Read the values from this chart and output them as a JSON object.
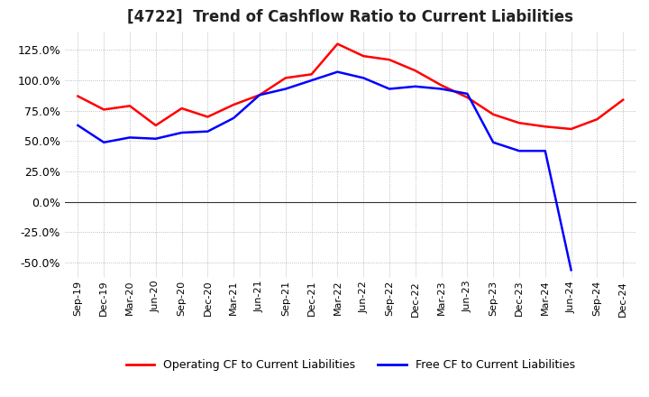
{
  "title": "[4722]  Trend of Cashflow Ratio to Current Liabilities",
  "x_labels": [
    "Sep-19",
    "Dec-19",
    "Mar-20",
    "Jun-20",
    "Sep-20",
    "Dec-20",
    "Mar-21",
    "Jun-21",
    "Sep-21",
    "Dec-21",
    "Mar-22",
    "Jun-22",
    "Sep-22",
    "Dec-22",
    "Mar-23",
    "Jun-23",
    "Sep-23",
    "Dec-23",
    "Mar-24",
    "Jun-24",
    "Sep-24",
    "Dec-24"
  ],
  "operating_cf": [
    0.87,
    0.76,
    0.79,
    0.63,
    0.77,
    0.7,
    0.8,
    0.88,
    1.02,
    1.05,
    1.3,
    1.2,
    1.17,
    1.08,
    0.96,
    0.86,
    0.72,
    0.65,
    0.62,
    0.6,
    0.68,
    0.84
  ],
  "free_cf": [
    0.63,
    0.49,
    0.53,
    0.52,
    0.57,
    0.58,
    0.69,
    0.88,
    0.93,
    1.0,
    1.07,
    1.02,
    0.93,
    0.95,
    0.93,
    0.89,
    0.49,
    0.42,
    0.42,
    -0.56,
    null,
    null
  ],
  "operating_color": "#FF0000",
  "free_color": "#0000FF",
  "ylim": [
    -0.625,
    1.4
  ],
  "yticks": [
    -0.5,
    -0.25,
    0.0,
    0.25,
    0.5,
    0.75,
    1.0,
    1.25
  ],
  "background_color": "#ffffff",
  "grid_color": "#aaaaaa",
  "zero_line_color": "#333333"
}
